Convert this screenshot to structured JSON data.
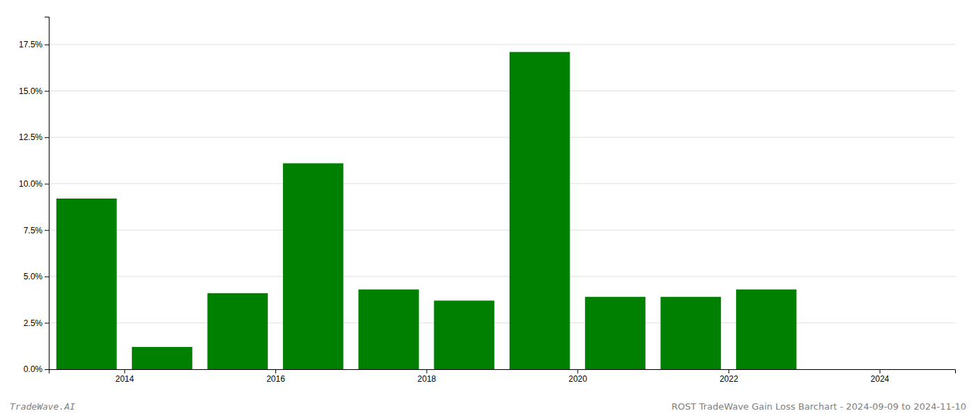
{
  "chart_data": {
    "type": "bar",
    "x": [
      2013.5,
      2014.5,
      2015.5,
      2016.5,
      2017.5,
      2018.5,
      2019.5,
      2020.5,
      2021.5,
      2022.5,
      2023.5
    ],
    "values": [
      0.092,
      0.012,
      0.041,
      0.111,
      0.043,
      0.037,
      0.171,
      0.039,
      0.039,
      0.043,
      0.0
    ],
    "color": "#008000",
    "xlim": [
      2013.0,
      2025.0
    ],
    "xticks": [
      2014,
      2016,
      2018,
      2020,
      2022,
      2024
    ],
    "ylim": [
      0,
      0.19
    ],
    "yticks": [
      {
        "value": 0.0,
        "label": "0.0%"
      },
      {
        "value": 0.025,
        "label": "2.5%"
      },
      {
        "value": 0.05,
        "label": "5.0%"
      },
      {
        "value": 0.075,
        "label": "7.5%"
      },
      {
        "value": 0.1,
        "label": "10.0%"
      },
      {
        "value": 0.125,
        "label": "12.5%"
      },
      {
        "value": 0.15,
        "label": "15.0%"
      },
      {
        "value": 0.175,
        "label": "17.5%"
      }
    ],
    "grid": true,
    "annotations": [
      "TradeWave.AI",
      "ROST TradeWave Gain Loss Barchart - 2024-09-09 to 2024-11-10"
    ]
  }
}
